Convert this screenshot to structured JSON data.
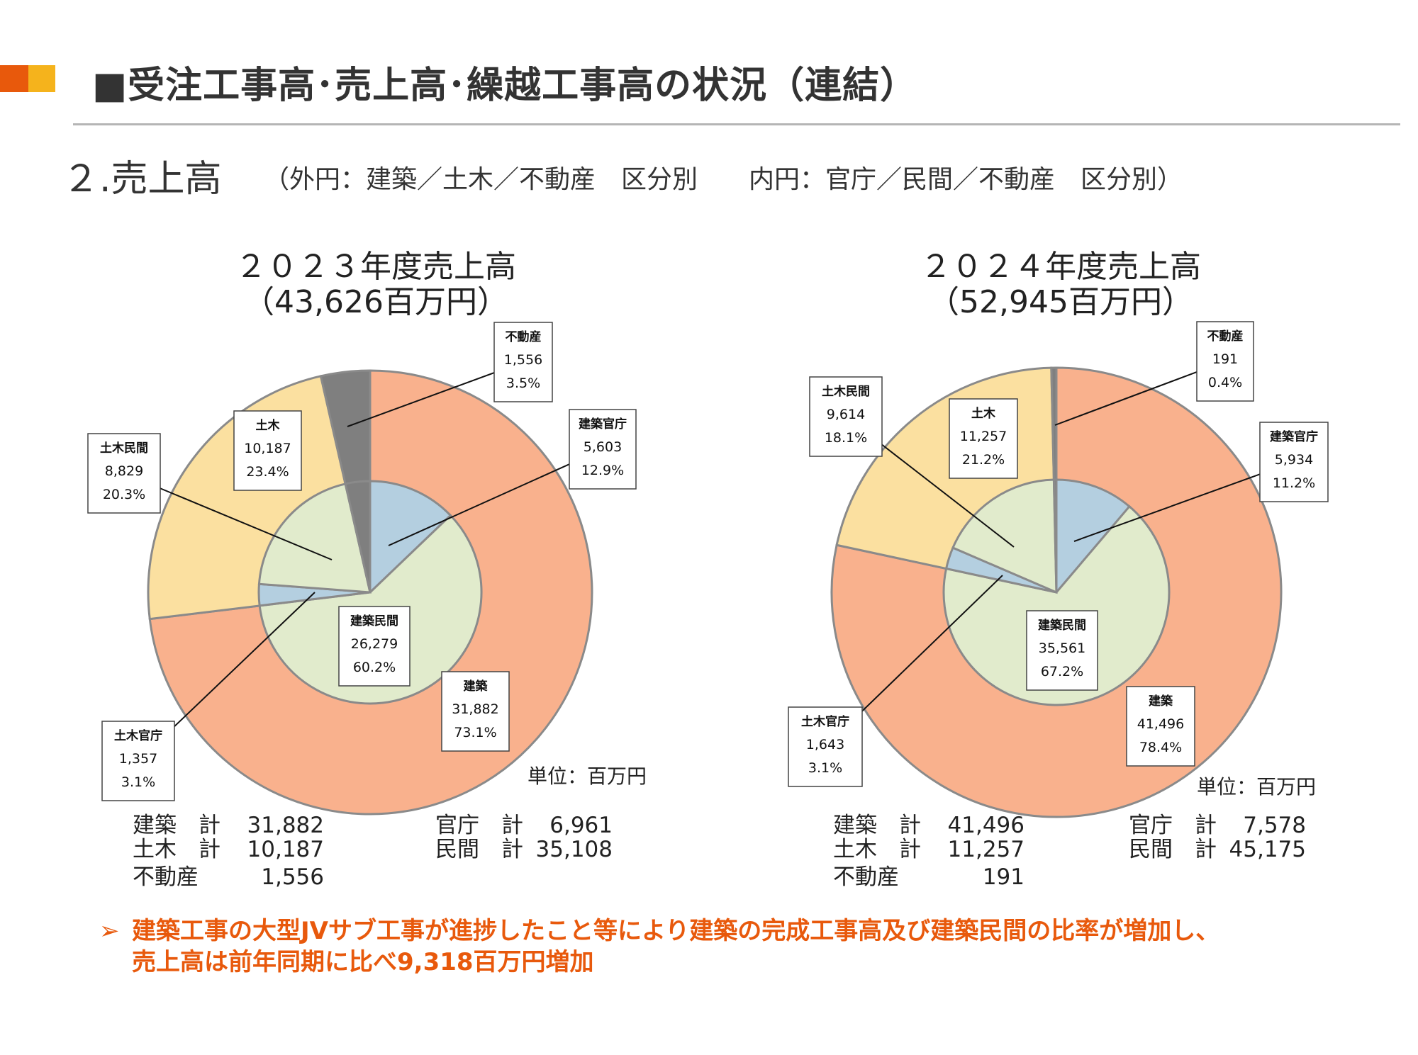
{
  "header": {
    "title": "■受注工事高･売上高･繰越工事高の状況（連結）",
    "subtitle": "２.売上高",
    "subtitle_note": "（外円：建築／土木／不動産　区分別　　内円：官庁／民間／不動産　区分別）"
  },
  "colors": {
    "accent_orange": "#e8590c",
    "accent_yellow": "#f5b31c",
    "kenchiku": "#f9b18d",
    "doboku": "#fbe0a0",
    "fudosan": "#7f7f7f",
    "kancho": "#b4cfe0",
    "minkan": "#e1ebcc",
    "stroke": "#8a8a8a"
  },
  "chart_data": [
    {
      "type": "pie",
      "title": "２０２３年度売上高",
      "subtitle": "（43,626百万円）",
      "unit_note": "単位：百万円",
      "outer": [
        {
          "name": "建築",
          "value": 31882,
          "label_value": "31,882",
          "percent": "73.1%"
        },
        {
          "name": "土木",
          "value": 10187,
          "label_value": "10,187",
          "percent": "23.4%"
        },
        {
          "name": "不動産",
          "value": 1556,
          "label_value": "1,556",
          "percent": "3.5%"
        }
      ],
      "inner": [
        {
          "name": "建築官庁",
          "value": 5603,
          "label_value": "5,603",
          "percent": "12.9%"
        },
        {
          "name": "建築民間",
          "value": 26279,
          "label_value": "26,279",
          "percent": "60.2%"
        },
        {
          "name": "土木官庁",
          "value": 1357,
          "label_value": "1,357",
          "percent": "3.1%"
        },
        {
          "name": "土木民間",
          "value": 8829,
          "label_value": "8,829",
          "percent": "20.3%"
        },
        {
          "name": "不動産",
          "value": 1556,
          "label_value": "1,556",
          "percent": "3.5%"
        }
      ],
      "totals_left": [
        {
          "label": "建築　計",
          "value": "31,882"
        },
        {
          "label": "土木　計",
          "value": "10,187"
        },
        {
          "label": "不動産",
          "value": "1,556"
        }
      ],
      "totals_right": [
        {
          "label": "官庁　計",
          "value": "6,961"
        },
        {
          "label": "民間　計",
          "value": "35,108"
        }
      ]
    },
    {
      "type": "pie",
      "title": "２０２４年度売上高",
      "subtitle": "（52,945百万円）",
      "unit_note": "単位：百万円",
      "outer": [
        {
          "name": "建築",
          "value": 41496,
          "label_value": "41,496",
          "percent": "78.4%"
        },
        {
          "name": "土木",
          "value": 11257,
          "label_value": "11,257",
          "percent": "21.2%"
        },
        {
          "name": "不動産",
          "value": 191,
          "label_value": "191",
          "percent": "0.4%"
        }
      ],
      "inner": [
        {
          "name": "建築官庁",
          "value": 5934,
          "label_value": "5,934",
          "percent": "11.2%"
        },
        {
          "name": "建築民間",
          "value": 35561,
          "label_value": "35,561",
          "percent": "67.2%"
        },
        {
          "name": "土木官庁",
          "value": 1643,
          "label_value": "1,643",
          "percent": "3.1%"
        },
        {
          "name": "土木民間",
          "value": 9614,
          "label_value": "9,614",
          "percent": "18.1%"
        },
        {
          "name": "不動産",
          "value": 191,
          "label_value": "191",
          "percent": "0.4%"
        }
      ],
      "totals_left": [
        {
          "label": "建築　計",
          "value": "41,496"
        },
        {
          "label": "土木　計",
          "value": "11,257"
        },
        {
          "label": "不動産",
          "value": "191"
        }
      ],
      "totals_right": [
        {
          "label": "官庁　計",
          "value": "7,578"
        },
        {
          "label": "民間　計",
          "value": "45,175"
        }
      ]
    }
  ],
  "note": {
    "arrow": "➢",
    "line1": "建築工事の大型JVサブ工事が進捗したこと等により建築の完成工事高及び建築民間の比率が増加し、",
    "line2": "売上高は前年同期に比べ9,318百万円増加"
  }
}
